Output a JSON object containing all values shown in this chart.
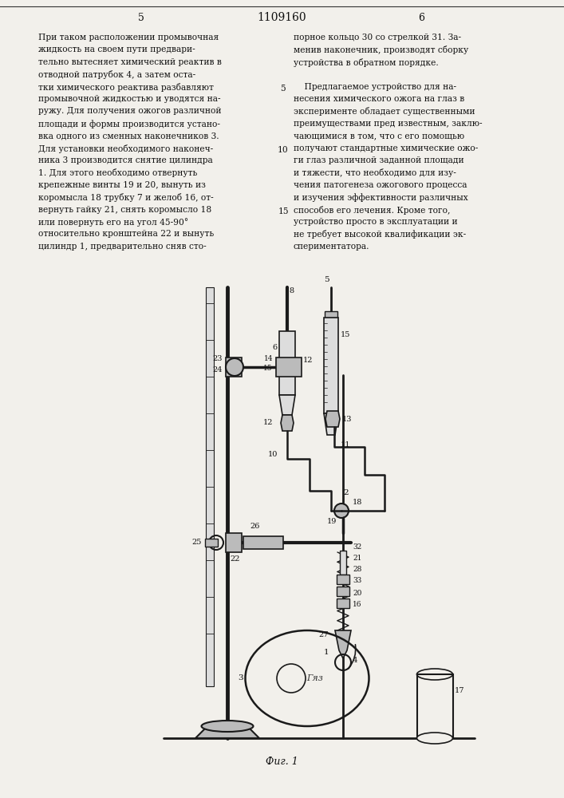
{
  "page_width": 7.07,
  "page_height": 10.0,
  "bg_color": "#f2f0eb",
  "patent_number": "1109160",
  "page_num_left": "5",
  "page_num_right": "6",
  "col1_lines": [
    "При таком расположении промывочная",
    "жидкость на своем пути предвари-",
    "тельно вытесняет химический реактив в",
    "отводной патрубок 4, а затем оста-",
    "тки химического реактива разбавляют",
    "промывочной жидкостью и уводятся на-",
    "ружу. Для получения ожогов различной",
    "площади и формы производится устано-",
    "вка одного из сменных наконечников 3.",
    "Для установки необходимого наконеч-",
    "ника 3 производится снятие цилиндра",
    "1. Для этого необходимо отвернуть",
    "крепежные винты 19 и 20, вынуть из",
    "коромысла 18 трубку 7 и желоб 16, от-",
    "вернуть гайку 21, снять коромысло 18",
    "или повернуть его на угол 45-90°",
    "относительно кронштейна 22 и вынуть",
    "цилиндр 1, предварительно сняв сто-"
  ],
  "col2_lines": [
    "порное кольцо 30 со стрелкой 31. За-",
    "менив наконечник, производят сборку",
    "устройства в обратном порядке.",
    "",
    "    Предлагаемое устройство для на-",
    "несения химического ожога на глаз в",
    "эксперименте обладает существенными",
    "преимуществами пред известным, заклю-",
    "чающимися в том, что с его помощью",
    "получают стандартные химические ожо-",
    "ги глаз различной заданной площади",
    "и тяжести, что необходимо для изу-",
    "чения патогенеза ожогового процесса",
    "и изучения эффективности различных",
    "способов его лечения. Кроме того,",
    "устройство просто в эксплуатации и",
    "не требует высокой квалификации эк-",
    "спериментатора."
  ],
  "line_markers": [
    {
      "row": 4,
      "label": "5"
    },
    {
      "row": 9,
      "label": "10"
    },
    {
      "row": 14,
      "label": "15"
    }
  ],
  "fig_caption": "Фиг. 1"
}
